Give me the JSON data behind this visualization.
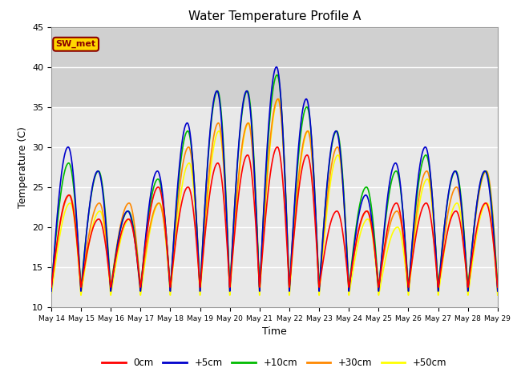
{
  "title": "Water Temperature Profile A",
  "xlabel": "Time",
  "ylabel": "Temperature (C)",
  "ylim": [
    10,
    45
  ],
  "background_color": "#ffffff",
  "plot_bg_color": "#e8e8e8",
  "grid_color": "#ffffff",
  "shaded_region": [
    35,
    45
  ],
  "shaded_color": "#d0d0d0",
  "annotation_text": "SW_met",
  "annotation_color": "#8B0000",
  "annotation_bg": "#FFD700",
  "annotation_border": "#8B0000",
  "series": {
    "0cm": {
      "color": "#FF0000",
      "lw": 1.2
    },
    "+5cm": {
      "color": "#0000CC",
      "lw": 1.2
    },
    "+10cm": {
      "color": "#00BB00",
      "lw": 1.2
    },
    "+30cm": {
      "color": "#FF8800",
      "lw": 1.2
    },
    "+50cm": {
      "color": "#FFFF00",
      "lw": 1.2
    }
  },
  "xtick_labels": [
    "May 14",
    "May 15",
    "May 16",
    "May 17",
    "May 18",
    "May 19",
    "May 20",
    "May 21",
    "May 22",
    "May 23",
    "May 24",
    "May 25",
    "May 26",
    "May 27",
    "May 28",
    "May 29"
  ],
  "ytick_values": [
    10,
    15,
    20,
    25,
    30,
    35,
    40,
    45
  ]
}
